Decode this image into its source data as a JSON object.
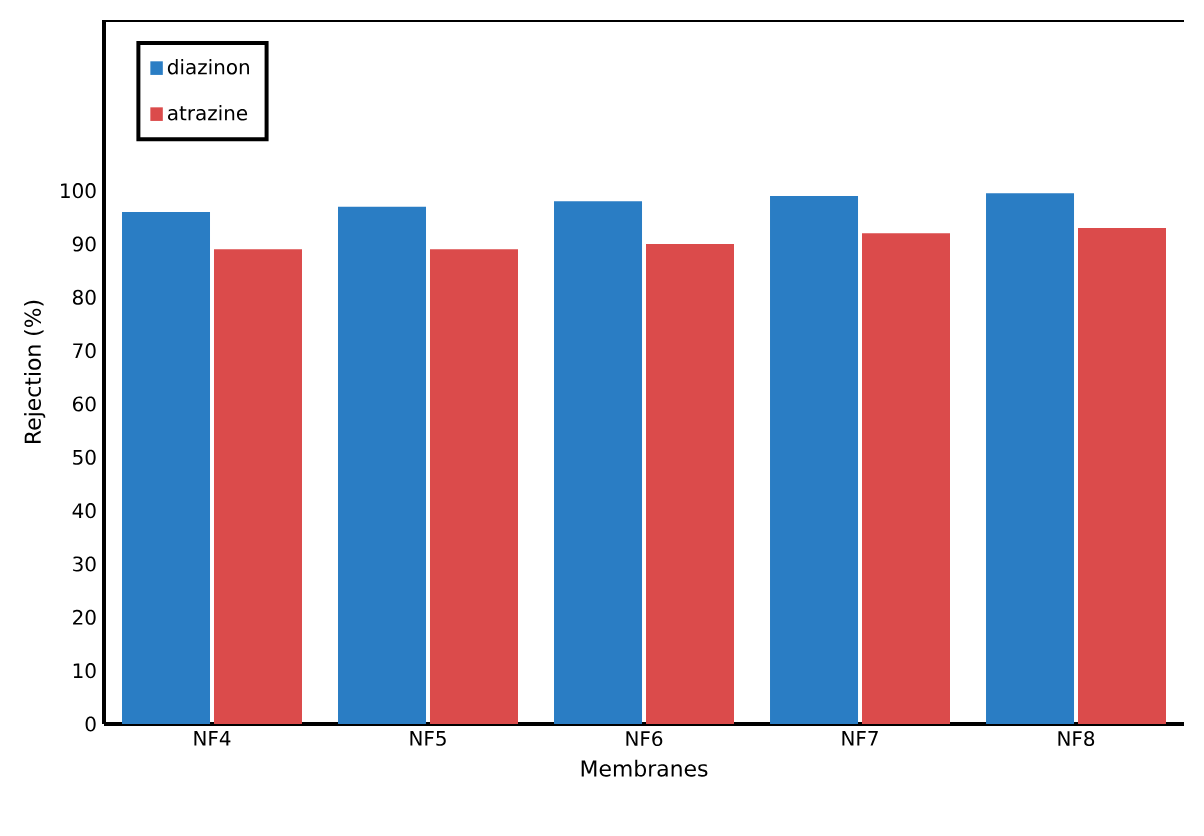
{
  "chart_data": {
    "type": "bar",
    "xlabel": "Membranes",
    "ylabel": "Rejection (%)",
    "categories": [
      "NF4",
      "NF5",
      "NF6",
      "NF7",
      "NF8"
    ],
    "series": [
      {
        "name": "diazinon",
        "color": "#2a7dc4",
        "values": [
          96,
          97,
          98,
          99,
          99.5
        ]
      },
      {
        "name": "atrazine",
        "color": "#db4b4b",
        "values": [
          89,
          89,
          90,
          92,
          93
        ]
      }
    ],
    "ylim": [
      0,
      132
    ],
    "yticks": [
      0,
      10,
      20,
      30,
      40,
      50,
      60,
      70,
      80,
      90,
      100
    ],
    "grid": false,
    "legend": "top left"
  }
}
